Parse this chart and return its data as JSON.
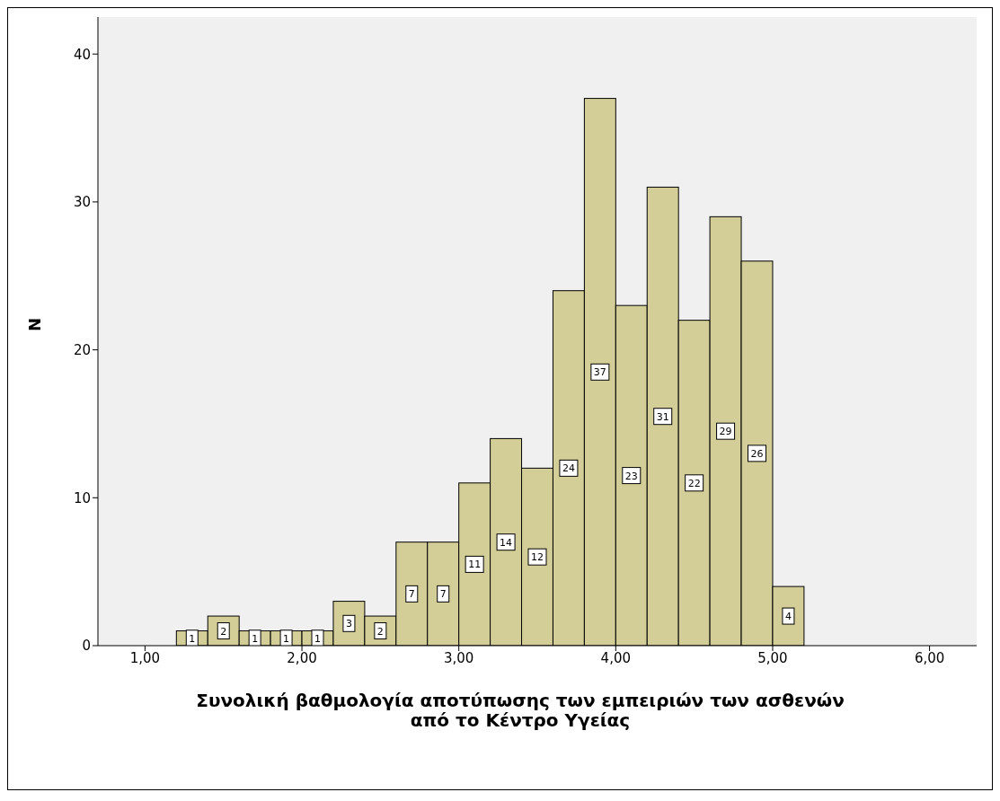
{
  "chart_data": {
    "type": "histogram",
    "xlabel": "Συνολική βαθμολογία αποτύπωσης των εμπειριών των ασθενών από το Κέντρο Υγείας",
    "ylabel": "N",
    "bins": [
      1.2,
      1.4,
      1.6,
      1.8,
      2.0,
      2.2,
      2.4,
      2.6,
      2.8,
      3.0,
      3.2,
      3.4,
      3.6,
      3.8,
      4.0,
      4.2,
      4.4,
      4.6,
      4.8,
      5.0,
      5.2
    ],
    "values": [
      1,
      2,
      1,
      1,
      1,
      3,
      2,
      7,
      7,
      11,
      14,
      12,
      24,
      37,
      23,
      31,
      22,
      29,
      26,
      4
    ],
    "color": "#d3ce98",
    "data_labels": true,
    "grid": false,
    "xlim": [
      0.7,
      6.3
    ],
    "xticks": [
      {
        "value": 1,
        "label": "1,00"
      },
      {
        "value": 2,
        "label": "2,00"
      },
      {
        "value": 3,
        "label": "3,00"
      },
      {
        "value": 4,
        "label": "4,00"
      },
      {
        "value": 5,
        "label": "5,00"
      },
      {
        "value": 6,
        "label": "6,00"
      }
    ],
    "ylim": [
      0,
      42.5
    ],
    "yticks": [
      0,
      10,
      20,
      30,
      40
    ]
  }
}
